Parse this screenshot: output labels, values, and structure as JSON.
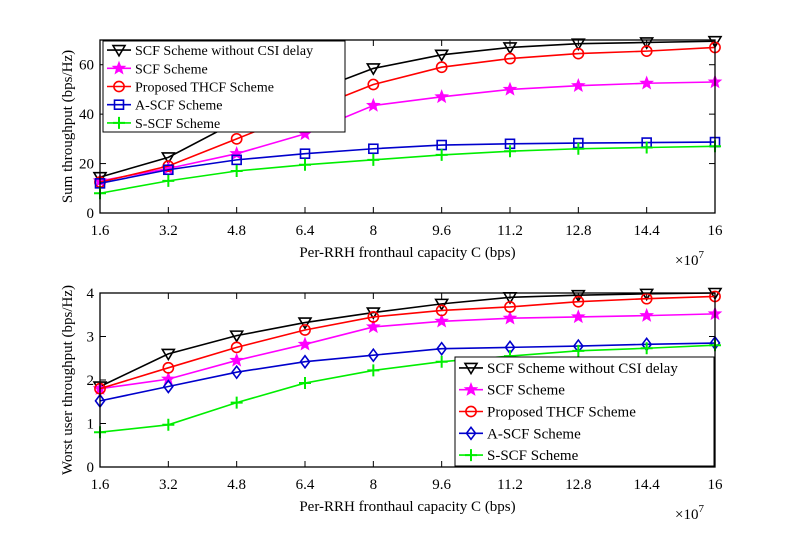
{
  "chart_data": [
    {
      "type": "line",
      "xlabel": "Per-RRH fronthaul capacity C (bps)",
      "ylabel": "Sum throughput (bps/Hz)",
      "x_multiplier_label": "×10",
      "x_multiplier_exp": "7",
      "x": [
        1.6,
        3.2,
        4.8,
        6.4,
        8,
        9.6,
        11.2,
        12.8,
        14.4,
        16
      ],
      "xticks": [
        "1.6",
        "3.2",
        "4.8",
        "6.4",
        "8",
        "9.6",
        "11.2",
        "12.8",
        "14.4",
        "16"
      ],
      "xlim": [
        1.6,
        16
      ],
      "ylim": [
        0,
        70
      ],
      "yticks": [
        0,
        20,
        40,
        60
      ],
      "legend_position": "top-left",
      "series": [
        {
          "name": "SCF Scheme without CSI delay",
          "color": "#000000",
          "marker": "triangle-down",
          "values": [
            14.5,
            22.5,
            37,
            48,
            58.5,
            64,
            67,
            68.5,
            69,
            69.5
          ]
        },
        {
          "name": "SCF Scheme",
          "color": "#ff00ff",
          "marker": "star",
          "values": [
            13,
            18,
            24,
            32,
            43.5,
            47,
            50,
            51.5,
            52.5,
            53
          ]
        },
        {
          "name": "Proposed THCF Scheme",
          "color": "#ff0000",
          "marker": "circle",
          "values": [
            12.5,
            19,
            30,
            41,
            52,
            59,
            62.5,
            64.5,
            65.5,
            67
          ]
        },
        {
          "name": "A-SCF Scheme",
          "color": "#0000cc",
          "marker": "square",
          "values": [
            12,
            17.5,
            21.5,
            24,
            26,
            27.5,
            28,
            28.3,
            28.5,
            28.7
          ]
        },
        {
          "name": "S-SCF Scheme",
          "color": "#00ee00",
          "marker": "plus",
          "values": [
            8,
            13,
            17,
            19.5,
            21.5,
            23.5,
            25,
            26,
            26.5,
            27
          ]
        }
      ]
    },
    {
      "type": "line",
      "xlabel": "Per-RRH fronthaul capacity C (bps)",
      "ylabel": "Worst user throughput (bps/Hz)",
      "x_multiplier_label": "×10",
      "x_multiplier_exp": "7",
      "x": [
        1.6,
        3.2,
        4.8,
        6.4,
        8,
        9.6,
        11.2,
        12.8,
        14.4,
        16
      ],
      "xticks": [
        "1.6",
        "3.2",
        "4.8",
        "6.4",
        "8",
        "9.6",
        "11.2",
        "12.8",
        "14.4",
        "16"
      ],
      "xlim": [
        1.6,
        16
      ],
      "ylim": [
        0,
        4
      ],
      "yticks": [
        0,
        1,
        2,
        3,
        4
      ],
      "legend_position": "bottom-right",
      "series": [
        {
          "name": "SCF Scheme without CSI delay",
          "color": "#000000",
          "marker": "triangle-down",
          "values": [
            1.85,
            2.6,
            3.02,
            3.32,
            3.55,
            3.75,
            3.9,
            3.95,
            3.98,
            4.0
          ]
        },
        {
          "name": "SCF Scheme",
          "color": "#ff00ff",
          "marker": "star",
          "values": [
            1.8,
            2.02,
            2.45,
            2.82,
            3.22,
            3.35,
            3.42,
            3.45,
            3.48,
            3.52
          ]
        },
        {
          "name": "Proposed THCF Scheme",
          "color": "#ff0000",
          "marker": "circle",
          "values": [
            1.8,
            2.28,
            2.75,
            3.15,
            3.45,
            3.6,
            3.68,
            3.8,
            3.87,
            3.92
          ]
        },
        {
          "name": "A-SCF Scheme",
          "color": "#0000cc",
          "marker": "diamond",
          "values": [
            1.52,
            1.85,
            2.18,
            2.42,
            2.57,
            2.72,
            2.75,
            2.78,
            2.82,
            2.85
          ]
        },
        {
          "name": "S-SCF Scheme",
          "color": "#00ee00",
          "marker": "plus",
          "values": [
            0.8,
            0.97,
            1.48,
            1.93,
            2.22,
            2.42,
            2.55,
            2.67,
            2.73,
            2.8
          ]
        }
      ]
    }
  ]
}
